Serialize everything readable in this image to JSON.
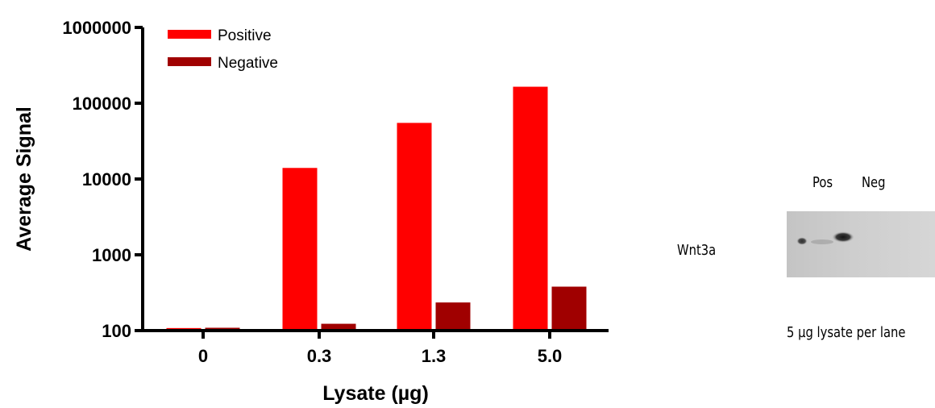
{
  "chart_data": {
    "type": "bar",
    "title": "",
    "xlabel": "Lysate (µg)",
    "ylabel": "Average Signal",
    "yscale": "log",
    "ylim": [
      100,
      1000000
    ],
    "yticks": [
      100,
      1000,
      10000,
      100000,
      1000000
    ],
    "ytick_labels": [
      "100",
      "1000",
      "10000",
      "100000",
      "1000000"
    ],
    "categories": [
      "0",
      "0.3",
      "1.3",
      "5.0"
    ],
    "series": [
      {
        "name": "Positive",
        "color": "#ff0000",
        "values": [
          108,
          14000,
          55000,
          165000
        ]
      },
      {
        "name": "Negative",
        "color": "#a00000",
        "values": [
          109,
          123,
          235,
          380
        ]
      }
    ],
    "legend": "top-left"
  },
  "blot": {
    "lane_labels": [
      "Pos",
      "Neg"
    ],
    "protein_label": "Wnt3a",
    "caption": "5 µg lysate per lane"
  }
}
